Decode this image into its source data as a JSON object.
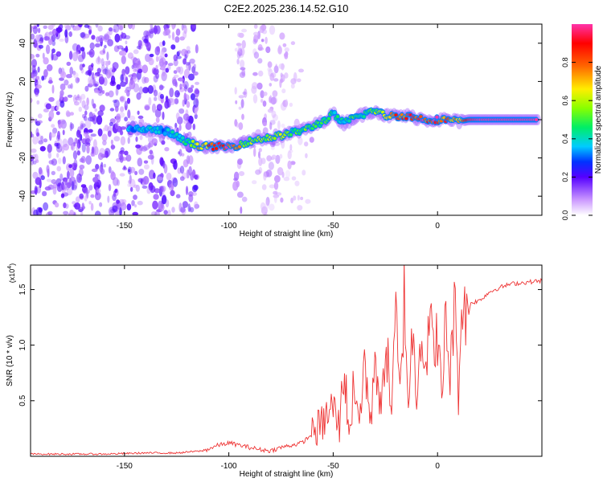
{
  "title": "C2E2.2025.236.14.52.G10",
  "colors": {
    "snr_line": "#ee3333",
    "axis": "#000000",
    "background": "#ffffff"
  },
  "chart_data": [
    {
      "type": "heatmap",
      "title": "C2E2.2025.236.14.52.G10",
      "xlabel": "Height of straight line (km)",
      "ylabel": "Frequency (Hz)",
      "xlim": [
        -195,
        50
      ],
      "ylim": [
        -50,
        50
      ],
      "xticks": [
        -150,
        -100,
        -50,
        0
      ],
      "yticks": [
        -40,
        -20,
        0,
        20,
        40
      ],
      "colorbar": {
        "label": "Normalized spectral amplitude",
        "range": [
          0,
          1
        ],
        "ticks": [
          0.0,
          0.2,
          0.4,
          0.6,
          0.8
        ]
      },
      "ridge": {
        "note": "dominant frequency ridge, Hz vs height (km)",
        "x": [
          -148,
          -140,
          -130,
          -120,
          -112,
          -105,
          -98,
          -92,
          -85,
          -78,
          -70,
          -63,
          -55,
          -50,
          -45,
          -40,
          -35,
          -30,
          -25,
          -20,
          -15,
          -10,
          -5,
          0,
          5,
          10,
          15,
          20,
          30,
          40,
          48
        ],
        "y": [
          -5,
          -5,
          -6,
          -12,
          -14,
          -14,
          -14,
          -12,
          -10,
          -9,
          -7,
          -5,
          -1,
          3,
          -2,
          1,
          3,
          5,
          2,
          2,
          2,
          1,
          0,
          0,
          0,
          -1,
          0,
          0,
          0,
          0,
          0
        ],
        "amplitude": [
          0.35,
          0.4,
          0.35,
          0.5,
          0.75,
          0.95,
          0.9,
          0.55,
          0.6,
          0.65,
          0.5,
          0.55,
          0.5,
          0.45,
          0.45,
          0.5,
          0.5,
          0.55,
          0.75,
          0.85,
          0.9,
          0.95,
          0.9,
          0.95,
          0.85,
          0.7,
          0.95,
          1.0,
          1.0,
          1.0,
          1.0
        ]
      }
    },
    {
      "type": "line",
      "xlabel": "Height of straight line (km)",
      "ylabel": "SNR (10 * v/v)",
      "yscale_label": "(x10",
      "yscale_exp": "4",
      "xlim": [
        -195,
        50
      ],
      "ylim": [
        0,
        1.72
      ],
      "xticks": [
        -150,
        -100,
        -50,
        0
      ],
      "yticks": [
        0.5,
        1.0,
        1.5
      ],
      "yticklabels": [
        "0.5",
        "1.0",
        "1.5"
      ],
      "series": [
        {
          "name": "SNR",
          "x": [
            -195,
            -180,
            -160,
            -140,
            -125,
            -112,
            -105,
            -100,
            -95,
            -90,
            -85,
            -80,
            -75,
            -70,
            -65,
            -60,
            -55,
            -50,
            -47,
            -45,
            -42,
            -40,
            -37,
            -35,
            -32,
            -30,
            -27,
            -25,
            -22,
            -20,
            -18,
            -16,
            -14,
            -12,
            -10,
            -8,
            -6,
            -4,
            -2,
            0,
            2,
            4,
            6,
            8,
            10,
            12,
            14,
            16,
            20,
            25,
            30,
            35,
            40,
            45,
            50
          ],
          "y": [
            0.02,
            0.02,
            0.02,
            0.03,
            0.03,
            0.05,
            0.1,
            0.12,
            0.1,
            0.08,
            0.06,
            0.05,
            0.08,
            0.1,
            0.12,
            0.2,
            0.3,
            0.45,
            0.25,
            0.8,
            0.2,
            0.7,
            0.3,
            0.9,
            0.25,
            1.0,
            0.3,
            1.1,
            0.4,
            1.25,
            0.5,
            1.45,
            0.5,
            1.1,
            0.6,
            1.2,
            0.8,
            1.2,
            0.95,
            1.15,
            0.45,
            1.3,
            0.7,
            1.4,
            0.6,
            1.52,
            1.2,
            1.38,
            1.4,
            1.48,
            1.52,
            1.55,
            1.56,
            1.57,
            1.58
          ]
        }
      ]
    }
  ]
}
